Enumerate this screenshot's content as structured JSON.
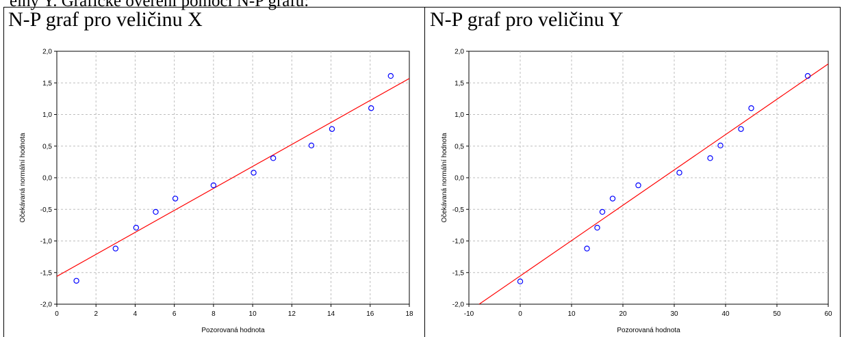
{
  "header_text": "elny Y. Grafické ověření pomocí N-P grafu:",
  "chart_data": [
    {
      "type": "scatter",
      "title": "N-P graf pro veličinu X",
      "xlabel": "Pozorovaná hodnota",
      "ylabel": "Očekávaná normální hodnota",
      "xlim": [
        0,
        18
      ],
      "ylim": [
        -2.0,
        2.0
      ],
      "xticks": [
        "0",
        "2",
        "4",
        "6",
        "8",
        "10",
        "12",
        "14",
        "16",
        "18"
      ],
      "yticks": [
        "2,0",
        "1,5",
        "1,0",
        "0,5",
        "0,0",
        "-0,5",
        "-1,0",
        "-1,5",
        "-2,0"
      ],
      "grid": true,
      "points": [
        {
          "x": 1,
          "y": -1.63
        },
        {
          "x": 3,
          "y": -1.12
        },
        {
          "x": 4.05,
          "y": -0.79
        },
        {
          "x": 5.05,
          "y": -0.54
        },
        {
          "x": 6.05,
          "y": -0.33
        },
        {
          "x": 8,
          "y": -0.12
        },
        {
          "x": 10.05,
          "y": 0.08
        },
        {
          "x": 11.05,
          "y": 0.31
        },
        {
          "x": 13,
          "y": 0.51
        },
        {
          "x": 14.05,
          "y": 0.77
        },
        {
          "x": 16.05,
          "y": 1.1
        },
        {
          "x": 17.05,
          "y": 1.61
        }
      ],
      "fit_line": {
        "x1": 0,
        "y1": -1.56,
        "x2": 18,
        "y2": 1.57
      },
      "point_color": "#0000ff",
      "line_color": "#ff0000"
    },
    {
      "type": "scatter",
      "title": "N-P graf pro veličinu Y",
      "xlabel": "Pozorovaná hodnota",
      "ylabel": "Očekávaná normální hodnota",
      "xlim": [
        -10,
        60
      ],
      "ylim": [
        -2.0,
        2.0
      ],
      "xticks": [
        "-10",
        "0",
        "10",
        "20",
        "30",
        "40",
        "50",
        "60"
      ],
      "yticks": [
        "2,0",
        "1,5",
        "1,0",
        "0,5",
        "0,0",
        "-0,5",
        "-1,0",
        "-1,5",
        "-2,0"
      ],
      "grid": true,
      "points": [
        {
          "x": 0,
          "y": -1.64
        },
        {
          "x": 13,
          "y": -1.12
        },
        {
          "x": 15,
          "y": -0.79
        },
        {
          "x": 16,
          "y": -0.54
        },
        {
          "x": 18,
          "y": -0.33
        },
        {
          "x": 23,
          "y": -0.12
        },
        {
          "x": 31,
          "y": 0.08
        },
        {
          "x": 37,
          "y": 0.31
        },
        {
          "x": 39,
          "y": 0.51
        },
        {
          "x": 43,
          "y": 0.77
        },
        {
          "x": 45,
          "y": 1.1
        },
        {
          "x": 56,
          "y": 1.61
        }
      ],
      "fit_line": {
        "x1": -8,
        "y1": -2.0,
        "x2": 60,
        "y2": 1.8
      },
      "point_color": "#0000ff",
      "line_color": "#ff0000"
    }
  ]
}
